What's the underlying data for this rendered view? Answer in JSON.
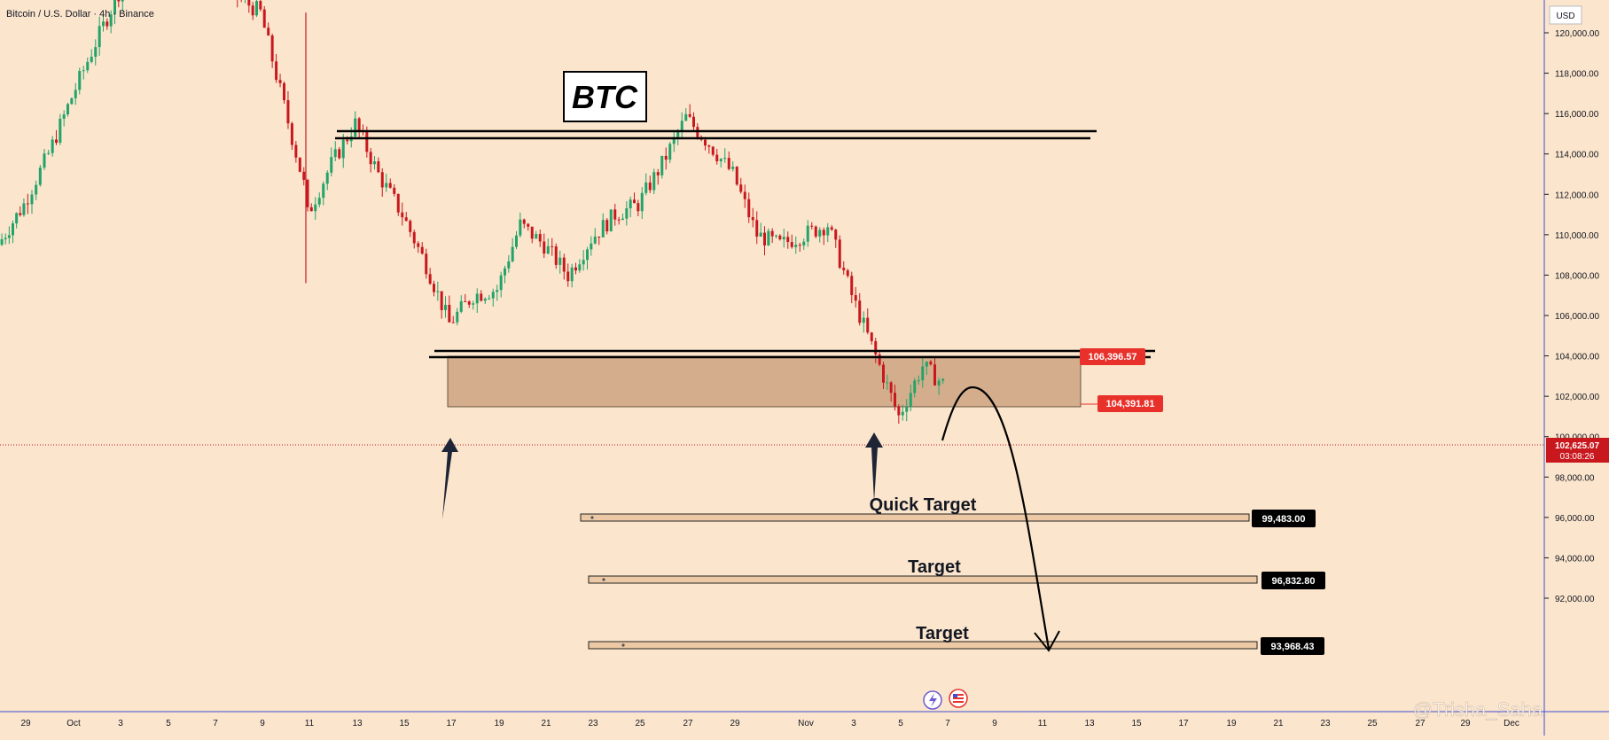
{
  "header": {
    "symbol_title": "Bitcoin / U.S. Dollar · 4h · Binance"
  },
  "price_axis": {
    "currency": "USD",
    "ticks": [
      "120,000.00",
      "118,000.00",
      "116,000.00",
      "114,000.00",
      "112,000.00",
      "110,000.00",
      "108,000.00",
      "106,000.00",
      "104,000.00",
      "102,000.00",
      "100,000.00",
      "98,000.00",
      "96,000.00",
      "94,000.00",
      "92,000.00"
    ],
    "current_price": "102,625.07",
    "countdown": "03:08:26"
  },
  "time_axis": {
    "ticks": [
      "29",
      "Oct",
      "3",
      "5",
      "7",
      "9",
      "11",
      "13",
      "15",
      "17",
      "19",
      "21",
      "23",
      "25",
      "27",
      "29",
      "Nov",
      "3",
      "5",
      "7",
      "9",
      "11",
      "13",
      "15",
      "17",
      "19",
      "21",
      "23",
      "25",
      "27",
      "29",
      "Dec"
    ]
  },
  "annotations": {
    "title_box": "BTC",
    "quick_target": "Quick Target",
    "target_1": "Target",
    "target_2": "Target",
    "zone_top_label": "106,396.57",
    "zone_bottom_label": "104,391.81",
    "target_quick_price": "99,483.00",
    "target_1_price": "96,832.80",
    "target_2_price": "93,968.43"
  },
  "watermark": "@Trisha_Saha",
  "colors": {
    "background": "#fbe5cc",
    "up": "#22a36a",
    "down": "#c8181e",
    "zone_fill": "#d4ae8c",
    "label_red": "#e8312a",
    "label_dark": "#000000"
  },
  "chart_data": {
    "type": "candlestick",
    "symbol": "Bitcoin / U.S. Dollar",
    "interval": "4h",
    "exchange": "Binance",
    "ylim": [
      91000,
      123000
    ],
    "x_ticks": [
      "29",
      "Oct",
      "3",
      "5",
      "7",
      "9",
      "11",
      "13",
      "15",
      "17",
      "19",
      "21",
      "23",
      "25",
      "27",
      "29",
      "Nov",
      "3",
      "5",
      "7",
      "9",
      "11",
      "13",
      "15",
      "17",
      "19",
      "21",
      "23",
      "25",
      "27",
      "29",
      "Dec"
    ],
    "price_path": [
      {
        "date": "Sep 29",
        "close": 109500
      },
      {
        "date": "Sep 30",
        "close": 111500
      },
      {
        "date": "Oct 1",
        "close": 114000
      },
      {
        "date": "Oct 2",
        "close": 116800
      },
      {
        "date": "Oct 3",
        "close": 119500
      },
      {
        "date": "Oct 4",
        "close": 122000
      },
      {
        "date": "Oct 5",
        "close": 123200
      },
      {
        "date": "Oct 6",
        "close": 124500
      },
      {
        "date": "Oct 7",
        "close": 124000
      },
      {
        "date": "Oct 8",
        "close": 123000
      },
      {
        "date": "Oct 9",
        "close": 121800
      },
      {
        "date": "Oct 10",
        "close": 121000
      },
      {
        "date": "Oct 10 crash",
        "low": 107600,
        "close": 112500
      },
      {
        "date": "Oct 11",
        "close": 111000
      },
      {
        "date": "Oct 12",
        "close": 113500
      },
      {
        "date": "Oct 13",
        "close": 115500
      },
      {
        "date": "Oct 14",
        "close": 113000
      },
      {
        "date": "Oct 15",
        "close": 111000
      },
      {
        "date": "Oct 16",
        "close": 108500
      },
      {
        "date": "Oct 17",
        "close": 105600
      },
      {
        "date": "Oct 18",
        "close": 107000
      },
      {
        "date": "Oct 19",
        "close": 107300
      },
      {
        "date": "Oct 20",
        "close": 110500
      },
      {
        "date": "Oct 21",
        "close": 109500
      },
      {
        "date": "Oct 22",
        "close": 108000
      },
      {
        "date": "Oct 23",
        "close": 109800
      },
      {
        "date": "Oct 24",
        "close": 111000
      },
      {
        "date": "Oct 25",
        "close": 111500
      },
      {
        "date": "Oct 26",
        "close": 113500
      },
      {
        "date": "Oct 27",
        "close": 115800
      },
      {
        "date": "Oct 28",
        "close": 114500
      },
      {
        "date": "Oct 29",
        "close": 113000
      },
      {
        "date": "Oct 30",
        "close": 110000
      },
      {
        "date": "Oct 31",
        "close": 109500
      },
      {
        "date": "Nov 1",
        "close": 110000
      },
      {
        "date": "Nov 2",
        "close": 110500
      },
      {
        "date": "Nov 3",
        "close": 107000
      },
      {
        "date": "Nov 4",
        "close": 104000
      },
      {
        "date": "Nov 5",
        "close": 101000
      },
      {
        "date": "Nov 6",
        "close": 103500
      },
      {
        "date": "Nov 7",
        "close": 102625
      }
    ],
    "resistance_line": 116000,
    "support_line": 106500,
    "zone": {
      "top": 106396.57,
      "bottom": 104391.81
    },
    "targets": [
      {
        "label": "Quick Target",
        "price": 99483.0
      },
      {
        "label": "Target",
        "price": 96832.8
      },
      {
        "label": "Target",
        "price": 93968.43
      }
    ],
    "current_price": 102625.07
  }
}
